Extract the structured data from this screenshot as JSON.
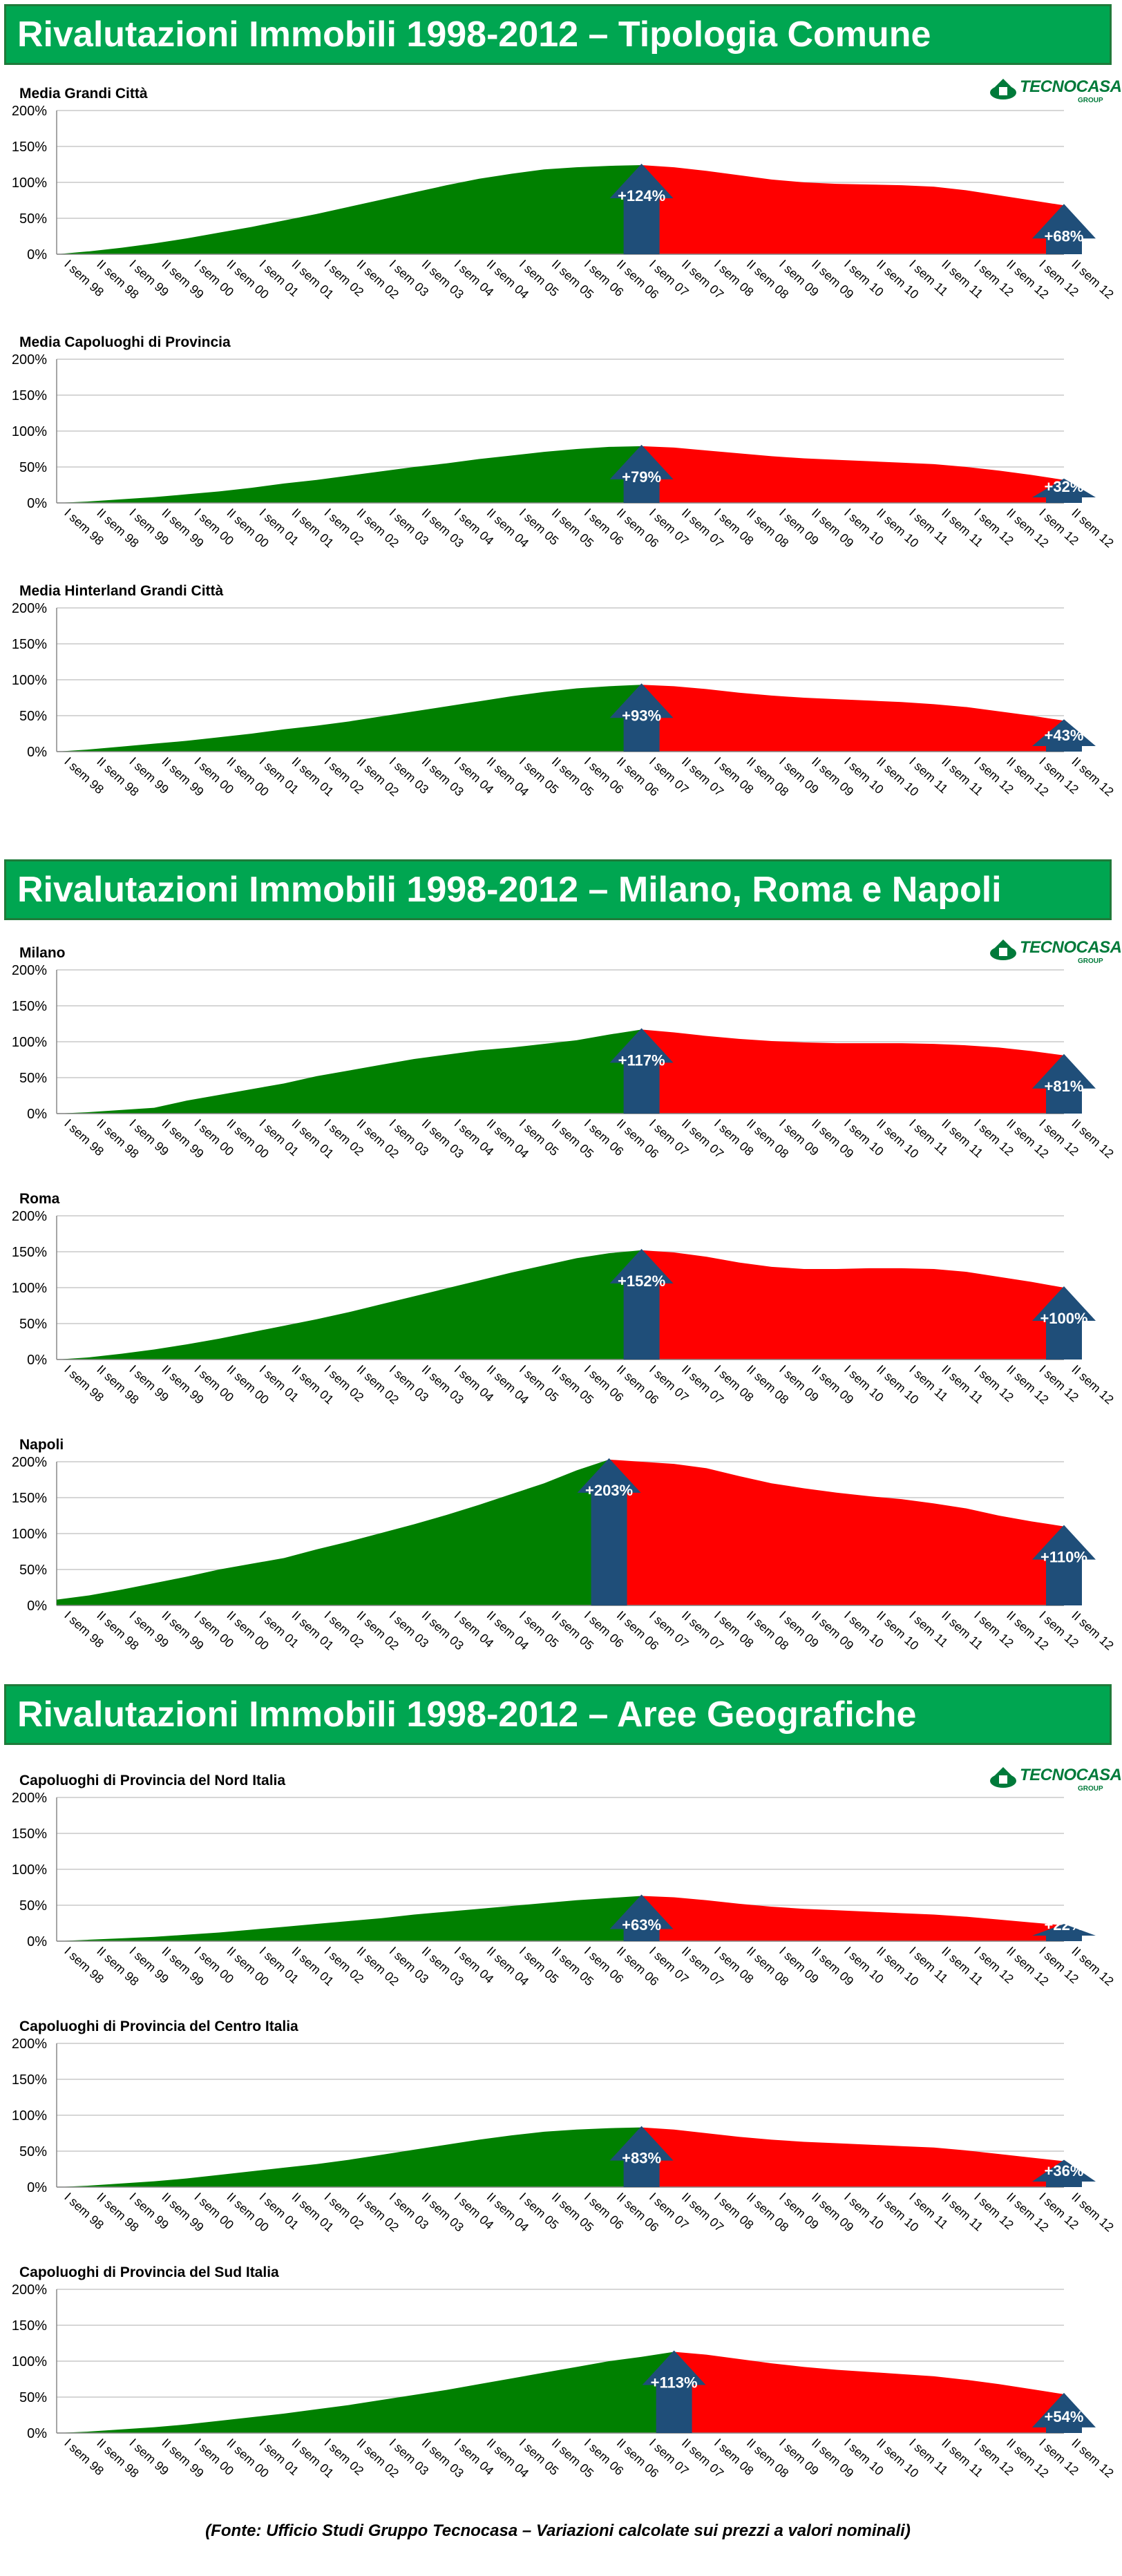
{
  "sections": [
    {
      "title": "Rivalutazioni Immobili 1998-2012 – Tipologia Comune"
    },
    {
      "title": "Rivalutazioni Immobili 1998-2012 – Milano, Roma e Napoli"
    },
    {
      "title": "Rivalutazioni Immobili 1998-2012 – Aree Geografiche"
    }
  ],
  "logo": {
    "name": "TECNOCASA",
    "sub": "GROUP",
    "icon": "tecnocasa-house-icon",
    "color": "#007a3a"
  },
  "footer": "(Fonte: Ufficio Studi Gruppo Tecnocasa – Variazioni calcolate sui prezzi a valori nominali)",
  "colors": {
    "rise": "#008000",
    "fall": "#ff0000",
    "arrow": "#1f4e79",
    "banner": "#00a651"
  },
  "chart_data": [
    {
      "type": "area",
      "title": "Media Grandi Città",
      "ylim": [
        0,
        200
      ],
      "yticks": [
        "0%",
        "50%",
        "100%",
        "150%",
        "200%"
      ],
      "peak_index": 18,
      "peak_label": "+124%",
      "end_label": "+68%",
      "values": [
        0,
        4,
        9,
        15,
        22,
        30,
        38,
        47,
        56,
        66,
        76,
        86,
        96,
        105,
        112,
        118,
        121,
        123,
        124,
        121,
        116,
        110,
        104,
        100,
        98,
        97,
        96,
        94,
        89,
        82,
        75,
        68
      ]
    },
    {
      "type": "area",
      "title": "Media Capoluoghi di Provincia",
      "ylim": [
        0,
        200
      ],
      "yticks": [
        "0%",
        "50%",
        "100%",
        "150%",
        "200%"
      ],
      "peak_index": 18,
      "peak_label": "+79%",
      "end_label": "+32%",
      "values": [
        0,
        2,
        5,
        8,
        12,
        16,
        21,
        27,
        32,
        38,
        44,
        50,
        55,
        61,
        66,
        71,
        75,
        78,
        79,
        77,
        73,
        69,
        65,
        62,
        60,
        58,
        56,
        54,
        50,
        45,
        39,
        32
      ]
    },
    {
      "type": "area",
      "title": "Media Hinterland Grandi Città",
      "ylim": [
        0,
        200
      ],
      "yticks": [
        "0%",
        "50%",
        "100%",
        "150%",
        "200%"
      ],
      "peak_index": 18,
      "peak_label": "+93%",
      "end_label": "+43%",
      "values": [
        0,
        3,
        7,
        11,
        15,
        20,
        25,
        31,
        36,
        42,
        49,
        56,
        63,
        70,
        77,
        83,
        88,
        91,
        93,
        91,
        87,
        82,
        78,
        75,
        73,
        71,
        69,
        66,
        62,
        56,
        50,
        43
      ]
    },
    {
      "type": "area",
      "title": "Milano",
      "ylim": [
        0,
        200
      ],
      "yticks": [
        "0%",
        "50%",
        "100%",
        "150%",
        "200%"
      ],
      "peak_index": 18,
      "peak_label": "+117%",
      "end_label": "+81%",
      "values": [
        0,
        2,
        5,
        8,
        18,
        26,
        34,
        42,
        52,
        60,
        68,
        76,
        82,
        88,
        92,
        97,
        102,
        110,
        117,
        113,
        108,
        104,
        101,
        99,
        98,
        98,
        98,
        97,
        95,
        92,
        87,
        81
      ]
    },
    {
      "type": "area",
      "title": "Roma",
      "ylim": [
        0,
        200
      ],
      "yticks": [
        "0%",
        "50%",
        "100%",
        "150%",
        "200%"
      ],
      "peak_index": 18,
      "peak_label": "+152%",
      "end_label": "+100%",
      "values": [
        0,
        3,
        8,
        14,
        21,
        29,
        38,
        47,
        56,
        66,
        77,
        88,
        99,
        110,
        121,
        131,
        141,
        148,
        152,
        149,
        143,
        135,
        129,
        126,
        126,
        127,
        127,
        126,
        122,
        115,
        108,
        100
      ]
    },
    {
      "type": "area",
      "title": "Napoli",
      "ylim": [
        0,
        200
      ],
      "yticks": [
        "0%",
        "50%",
        "100%",
        "150%",
        "200%"
      ],
      "peak_index": 17,
      "peak_label": "+203%",
      "end_label": "+110%",
      "values": [
        8,
        14,
        22,
        31,
        40,
        50,
        58,
        66,
        78,
        89,
        101,
        113,
        126,
        140,
        155,
        170,
        188,
        203,
        200,
        197,
        191,
        180,
        170,
        163,
        157,
        152,
        148,
        142,
        135,
        125,
        117,
        110
      ]
    },
    {
      "type": "area",
      "title": "Capoluoghi di Provincia del Nord Italia",
      "ylim": [
        0,
        200
      ],
      "yticks": [
        "0%",
        "50%",
        "100%",
        "150%",
        "200%"
      ],
      "peak_index": 18,
      "peak_label": "+63%",
      "end_label": "+22%",
      "values": [
        0,
        2,
        4,
        6,
        9,
        12,
        16,
        20,
        24,
        28,
        32,
        37,
        41,
        45,
        49,
        53,
        57,
        60,
        63,
        61,
        57,
        52,
        48,
        45,
        43,
        41,
        39,
        37,
        34,
        30,
        26,
        22
      ]
    },
    {
      "type": "area",
      "title": "Capoluoghi di Provincia del Centro Italia",
      "ylim": [
        0,
        200
      ],
      "yticks": [
        "0%",
        "50%",
        "100%",
        "150%",
        "200%"
      ],
      "peak_index": 18,
      "peak_label": "+83%",
      "end_label": "+36%",
      "values": [
        0,
        2,
        5,
        8,
        12,
        17,
        22,
        27,
        32,
        38,
        45,
        52,
        59,
        66,
        72,
        77,
        80,
        82,
        83,
        80,
        75,
        70,
        66,
        63,
        61,
        59,
        57,
        55,
        51,
        46,
        41,
        36
      ]
    },
    {
      "type": "area",
      "title": "Capoluoghi di Provincia del Sud Italia",
      "ylim": [
        0,
        200
      ],
      "yticks": [
        "0%",
        "50%",
        "100%",
        "150%",
        "200%"
      ],
      "peak_index": 19,
      "peak_label": "+113%",
      "end_label": "+54%",
      "values": [
        0,
        2,
        5,
        8,
        12,
        17,
        22,
        27,
        33,
        39,
        46,
        53,
        60,
        68,
        76,
        84,
        92,
        100,
        106,
        113,
        109,
        103,
        97,
        92,
        88,
        85,
        82,
        79,
        74,
        68,
        61,
        54
      ]
    }
  ],
  "categories": [
    "I sem 98",
    "II sem 98",
    "I sem 99",
    "II sem 99",
    "I sem 00",
    "II sem 00",
    "I sem 01",
    "II sem 01",
    "I sem 02",
    "II sem 02",
    "I sem 03",
    "II sem 03",
    "I sem 04",
    "II sem 04",
    "I sem 05",
    "II sem 05",
    "I sem 06",
    "II sem 06",
    "I sem 07",
    "II sem 07",
    "I sem 08",
    "II sem 08",
    "I sem 09",
    "II sem 09",
    "I sem 10",
    "II sem 10",
    "I sem 11",
    "II sem 11",
    "I sem 12",
    "II sem 12",
    "I sem 12",
    "II sem 12"
  ]
}
